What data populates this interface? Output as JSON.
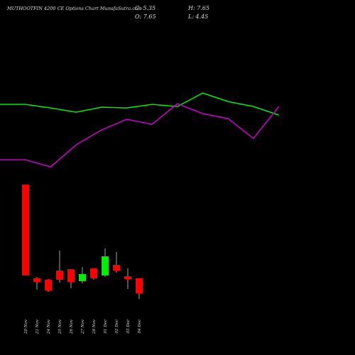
{
  "chart_data": [
    {
      "type": "line",
      "ylim": [
        0,
        300
      ],
      "series": [
        {
          "color": "#00ee00",
          "values": [
            153,
            153,
            148,
            142,
            149,
            148,
            153,
            150,
            169,
            157,
            150,
            138
          ]
        },
        {
          "color": "#cc00cc",
          "values": [
            75,
            75,
            65,
            96,
            117,
            132,
            125,
            154,
            140,
            133,
            105,
            150
          ]
        }
      ]
    },
    {
      "type": "candlestick",
      "title": "MUTHOOTFIN 4200 CE Options Chart MunafaSutra.com",
      "stats": [
        "C: 5.35",
        "H: 7.65",
        "O: 7.65",
        "L: 4.45"
      ],
      "categories": [
        "20 Nov",
        "21 Nov",
        "24 Nov",
        "25 Nov",
        "26 Nov",
        "27 Nov",
        "28 Nov",
        "01 Dec",
        "02 Dec",
        "03 Dec",
        "04 Dec"
      ],
      "open": [
        22.1,
        7.65,
        7.43,
        8.85,
        9.07,
        7.21,
        9.18,
        8.09,
        9.73,
        7.98,
        7.65
      ],
      "high": [
        22.1,
        7.87,
        7.54,
        11.92,
        9.07,
        9.4,
        9.18,
        12.25,
        11.7,
        9.18,
        7.65
      ],
      "low": [
        8.09,
        5.9,
        5.57,
        6.99,
        6.12,
        6.88,
        7.43,
        7.87,
        8.53,
        6.01,
        4.45
      ],
      "close": [
        8.09,
        7.1,
        5.79,
        7.43,
        7.1,
        8.31,
        7.65,
        11.04,
        8.85,
        7.54,
        5.35
      ],
      "up_color": "#00ee00",
      "down_color": "#ff0000",
      "ylim": [
        2,
        24
      ]
    }
  ]
}
